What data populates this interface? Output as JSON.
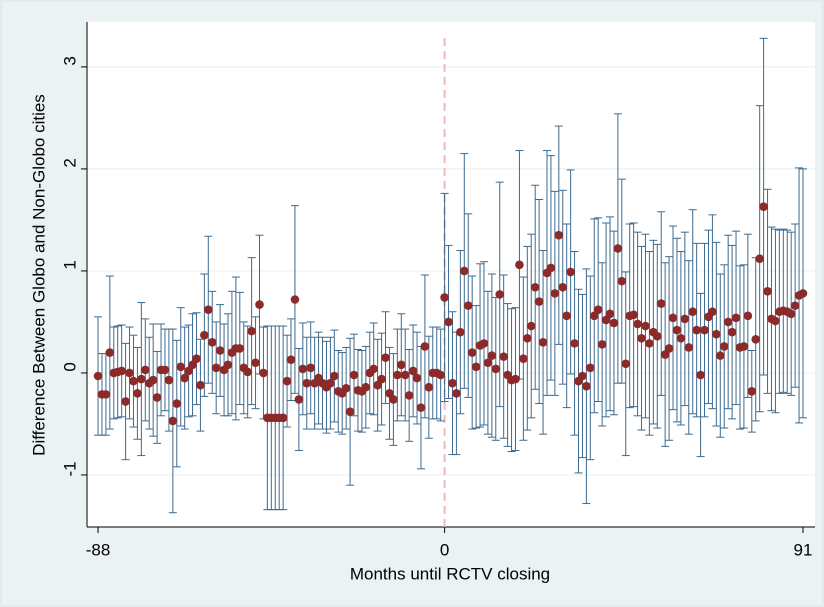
{
  "chart_data": {
    "type": "errorbar",
    "xlabel": "Months until RCTV closing",
    "ylabel": "Difference Between Globo and Non-Globo cities",
    "xlim": [
      -90.8,
      94.05
    ],
    "ylim": [
      -1.51,
      3.44
    ],
    "xticks": [
      -88,
      0,
      91
    ],
    "yticks": [
      -1,
      0,
      1,
      2,
      3
    ],
    "grid": true,
    "reference_line": 0,
    "marker_color": "#8c2a2a",
    "bar_color": "#3e6a8e",
    "reference_color": "#f4b8b8",
    "x": [
      -88,
      -87,
      -86,
      -85,
      -84,
      -83,
      -82,
      -81,
      -80,
      -79,
      -78,
      -77,
      -76,
      -75,
      -74,
      -73,
      -72,
      -71,
      -70,
      -69,
      -68,
      -67,
      -66,
      -65,
      -64,
      -63,
      -62,
      -61,
      -60,
      -59,
      -58,
      -57,
      -56,
      -55,
      -54,
      -53,
      -52,
      -51,
      -50,
      -49,
      -48,
      -47,
      -46,
      -45,
      -44,
      -43,
      -42,
      -41,
      -40,
      -39,
      -38,
      -37,
      -36,
      -35,
      -34,
      -33,
      -32,
      -31,
      -30,
      -29,
      -28,
      -27,
      -26,
      -25,
      -24,
      -23,
      -22,
      -21,
      -20,
      -19,
      -18,
      -17,
      -16,
      -15,
      -14,
      -13,
      -12,
      -11,
      -10,
      -9,
      -8,
      -7,
      -6,
      -5,
      -4,
      -3,
      -2,
      -1,
      0,
      1,
      2,
      3,
      4,
      5,
      6,
      7,
      8,
      9,
      10,
      11,
      12,
      13,
      14,
      15,
      16,
      17,
      18,
      19,
      20,
      21,
      22,
      23,
      24,
      25,
      26,
      27,
      28,
      29,
      30,
      31,
      32,
      33,
      34,
      35,
      36,
      37,
      38,
      39,
      40,
      41,
      42,
      43,
      44,
      45,
      46,
      47,
      48,
      49,
      50,
      51,
      52,
      53,
      54,
      55,
      56,
      57,
      58,
      59,
      60,
      61,
      62,
      63,
      64,
      65,
      66,
      67,
      68,
      69,
      70,
      71,
      72,
      73,
      74,
      75,
      76,
      77,
      78,
      79,
      80,
      81,
      82,
      83,
      84,
      85,
      86,
      87,
      88,
      89,
      90,
      91
    ],
    "values": [
      -0.03,
      -0.21,
      -0.21,
      0.2,
      0.0,
      0.01,
      0.02,
      -0.28,
      0.0,
      -0.08,
      -0.2,
      -0.06,
      0.03,
      -0.1,
      -0.07,
      -0.24,
      0.03,
      0.03,
      -0.07,
      -0.47,
      -0.3,
      0.06,
      -0.05,
      0.02,
      0.08,
      0.14,
      -0.12,
      0.37,
      0.62,
      0.3,
      0.05,
      0.22,
      0.03,
      0.08,
      0.2,
      0.24,
      0.24,
      0.05,
      0.01,
      0.41,
      0.1,
      0.67,
      0.0,
      -0.44,
      -0.44,
      -0.44,
      -0.44,
      -0.44,
      -0.08,
      0.13,
      0.72,
      -0.26,
      0.04,
      -0.1,
      0.05,
      -0.1,
      -0.05,
      -0.1,
      -0.14,
      -0.1,
      -0.03,
      -0.18,
      -0.2,
      -0.15,
      -0.38,
      -0.02,
      -0.17,
      -0.18,
      -0.14,
      0.0,
      0.04,
      -0.12,
      -0.06,
      0.15,
      -0.2,
      -0.26,
      -0.02,
      0.08,
      -0.02,
      -0.22,
      0.02,
      -0.05,
      -0.34,
      0.26,
      -0.14,
      0.0,
      0.0,
      -0.02,
      0.74,
      0.5,
      -0.1,
      -0.2,
      0.4,
      1.0,
      0.66,
      0.2,
      0.06,
      0.27,
      0.29,
      0.1,
      0.17,
      0.04,
      0.77,
      0.16,
      -0.02,
      -0.07,
      -0.06,
      1.06,
      0.14,
      0.34,
      0.46,
      0.84,
      0.7,
      0.3,
      0.98,
      1.03,
      0.78,
      1.35,
      0.84,
      0.56,
      0.99,
      0.29,
      -0.08,
      -0.03,
      -0.13,
      0.05,
      0.56,
      0.62,
      0.28,
      0.52,
      0.58,
      0.49,
      1.22,
      0.9,
      0.09,
      0.56,
      0.57,
      0.48,
      0.34,
      0.46,
      0.29,
      0.4,
      0.36,
      0.68,
      0.18,
      0.24,
      0.54,
      0.42,
      0.34,
      0.53,
      0.25,
      0.6,
      0.42,
      -0.02,
      0.42,
      0.55,
      0.6,
      0.38,
      0.17,
      0.26,
      0.5,
      0.4,
      0.54,
      0.25,
      0.26,
      0.56,
      -0.18,
      0.33,
      1.12,
      1.63,
      0.8,
      0.53,
      0.51,
      0.6,
      0.61,
      0.6,
      0.58,
      0.66,
      0.76,
      0.78
    ],
    "errors": [
      0.58,
      0.4,
      0.4,
      0.75,
      0.45,
      0.45,
      0.45,
      0.57,
      0.45,
      0.45,
      0.45,
      0.75,
      0.5,
      0.45,
      0.55,
      0.45,
      0.45,
      0.4,
      0.5,
      0.9,
      0.62,
      0.58,
      0.5,
      0.45,
      0.5,
      0.45,
      0.45,
      0.6,
      0.72,
      0.5,
      0.45,
      0.45,
      0.45,
      0.5,
      0.6,
      0.7,
      0.55,
      0.45,
      0.45,
      0.72,
      0.45,
      0.68,
      0.45,
      0.9,
      0.9,
      0.9,
      0.9,
      0.9,
      0.45,
      0.4,
      0.92,
      0.5,
      0.45,
      0.45,
      0.45,
      0.45,
      0.45,
      0.45,
      0.45,
      0.45,
      0.45,
      0.4,
      0.4,
      0.4,
      0.72,
      0.4,
      0.4,
      0.4,
      0.4,
      0.4,
      0.45,
      0.45,
      0.45,
      0.45,
      0.45,
      0.45,
      0.45,
      0.5,
      0.45,
      0.45,
      0.45,
      0.45,
      0.6,
      0.7,
      0.5,
      0.45,
      0.45,
      0.45,
      1.02,
      0.75,
      0.7,
      0.6,
      0.8,
      1.15,
      0.9,
      0.75,
      0.6,
      0.8,
      0.8,
      0.7,
      0.8,
      0.7,
      1.1,
      0.8,
      0.7,
      0.7,
      0.7,
      1.12,
      0.8,
      0.9,
      0.9,
      1.0,
      1.0,
      0.9,
      1.2,
      1.1,
      1.0,
      1.07,
      0.95,
      0.9,
      1.0,
      0.9,
      0.9,
      0.8,
      1.15,
      0.9,
      0.95,
      0.9,
      0.8,
      0.95,
      0.95,
      0.9,
      1.32,
      1.0,
      0.9,
      0.9,
      0.9,
      0.9,
      0.9,
      0.9,
      0.9,
      0.9,
      0.9,
      0.9,
      0.9,
      0.9,
      0.9,
      0.9,
      0.85,
      0.85,
      0.85,
      1.0,
      0.85,
      0.8,
      0.85,
      0.85,
      0.95,
      0.9,
      0.8,
      0.8,
      0.85,
      0.85,
      0.85,
      0.8,
      0.8,
      0.8,
      0.4,
      0.8,
      1.5,
      1.65,
      1.0,
      0.9,
      0.9,
      0.8,
      0.8,
      0.8,
      0.8,
      0.8,
      1.25,
      1.22
    ]
  }
}
